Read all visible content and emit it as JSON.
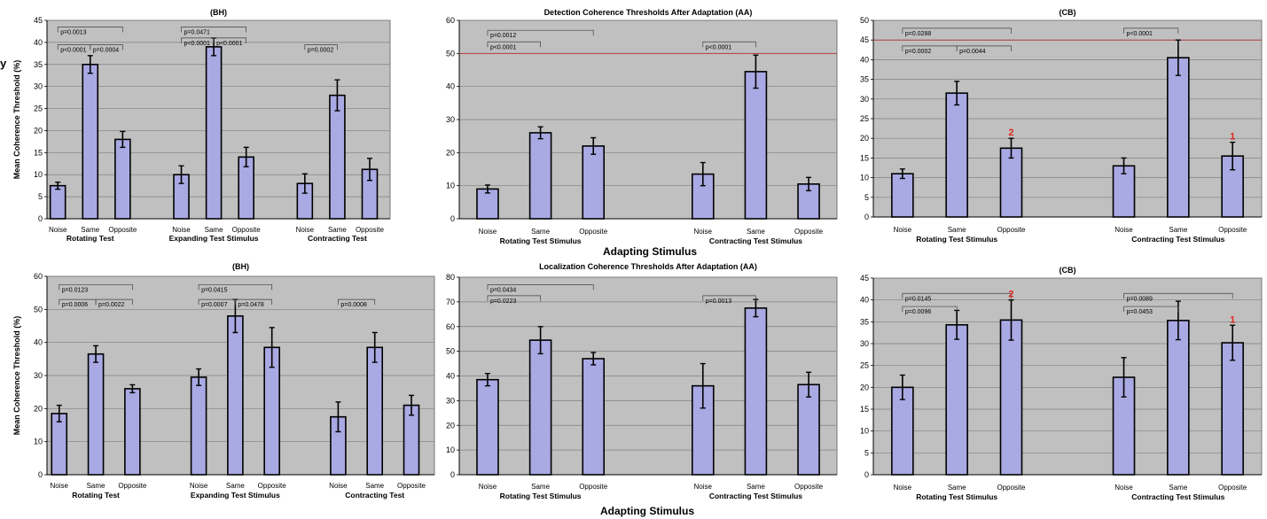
{
  "figure": {
    "adapting_caption": "Adapting Stimulus",
    "side_glyph": "y",
    "colors": {
      "bar": "#a9a9e3",
      "plot_bg": "#c0c0c0",
      "grid": "#808080",
      "ref_line": "#b04040",
      "marker": "#e0271f"
    }
  },
  "chart_data": [
    {
      "type": "bar",
      "title": "(BH)",
      "ylabel": "Mean Coherence Threshold (%)",
      "ylim": [
        0,
        45
      ],
      "ytick_step": 5,
      "categories": [
        "Noise",
        "Same",
        "Opposite",
        "Noise",
        "Same",
        "Opposite",
        "Noise",
        "Same",
        "Opposite"
      ],
      "groups": [
        "Rotating Test",
        "Expanding Test Stimulus",
        "Contracting Test"
      ],
      "values": [
        7.5,
        35,
        18,
        10,
        39,
        14,
        8,
        28,
        11.2
      ],
      "errors": [
        0.8,
        2,
        1.8,
        2,
        2,
        2.2,
        2.2,
        3.5,
        2.5
      ],
      "brackets": [
        {
          "from": 0,
          "to": 2,
          "y": 43.5,
          "label": "p=0.0013"
        },
        {
          "from": 0,
          "to": 1,
          "y": 39.5,
          "label": "p<0.0001"
        },
        {
          "from": 1,
          "to": 2,
          "y": 39.5,
          "label": "p=0.0004"
        },
        {
          "from": 3,
          "to": 5,
          "y": 43.5,
          "label": "p=0.0471"
        },
        {
          "from": 3,
          "to": 4,
          "y": 41,
          "label": "p<0.0001"
        },
        {
          "from": 4,
          "to": 5,
          "y": 41,
          "label": "p<0.0001"
        },
        {
          "from": 6,
          "to": 7,
          "y": 39.5,
          "label": "p=0.0002"
        }
      ],
      "markers": [],
      "ref_line": null
    },
    {
      "type": "bar",
      "title": "Detection Coherence Thresholds After Adaptation (AA)",
      "ylabel": "",
      "ylim": [
        0,
        60
      ],
      "ytick_step": 10,
      "categories": [
        "Noise",
        "Same",
        "Opposite",
        "Noise",
        "Same",
        "Opposite"
      ],
      "groups": [
        "Rotating Test Stimulus",
        "Contracting Test Stimulus"
      ],
      "values": [
        9,
        26,
        22,
        13.5,
        44.5,
        10.5
      ],
      "errors": [
        1.2,
        1.8,
        2.5,
        3.5,
        5,
        2
      ],
      "brackets": [
        {
          "from": 0,
          "to": 2,
          "y": 57,
          "label": "p=0.0012"
        },
        {
          "from": 0,
          "to": 1,
          "y": 53.5,
          "label": "p<0.0001"
        },
        {
          "from": 3,
          "to": 4,
          "y": 53.5,
          "label": "p<0.0001"
        }
      ],
      "markers": [],
      "ref_line": 50
    },
    {
      "type": "bar",
      "title": "(CB)",
      "ylabel": "",
      "ylim": [
        0,
        50
      ],
      "ytick_step": 5,
      "categories": [
        "Noise",
        "Same",
        "Opposite",
        "Noise",
        "Same",
        "Opposite"
      ],
      "groups": [
        "Rotating Test Stimulus",
        "Contracting Test Stimulus"
      ],
      "values": [
        11,
        31.5,
        17.5,
        13,
        40.5,
        15.5
      ],
      "errors": [
        1.2,
        3,
        2.5,
        2,
        4.5,
        3.5
      ],
      "brackets": [
        {
          "from": 0,
          "to": 2,
          "y": 48,
          "label": "p=0.0288"
        },
        {
          "from": 0,
          "to": 1,
          "y": 43.5,
          "label": "p=0.0002"
        },
        {
          "from": 1,
          "to": 2,
          "y": 43.5,
          "label": "p=0.0044"
        },
        {
          "from": 3,
          "to": 4,
          "y": 48,
          "label": "p<0.0001"
        }
      ],
      "markers": [
        {
          "index": 2,
          "label": "2"
        },
        {
          "index": 5,
          "label": "1"
        }
      ],
      "ref_line": 45
    },
    {
      "type": "bar",
      "title": "(BH)",
      "ylabel": "Mean Coherence Threshold (%)",
      "ylim": [
        0,
        60
      ],
      "ytick_step": 10,
      "categories": [
        "Noise",
        "Same",
        "Opposite",
        "Noise",
        "Same",
        "Opposite",
        "Noise",
        "Same",
        "Opposite"
      ],
      "groups": [
        "Rotating Test",
        "Expanding Test Stimulus",
        "Contracting Test"
      ],
      "values": [
        18.5,
        36.5,
        26,
        29.5,
        48,
        38.5,
        17.5,
        38.5,
        21
      ],
      "errors": [
        2.5,
        2.5,
        1.2,
        2.5,
        5,
        6,
        4.5,
        4.5,
        3
      ],
      "brackets": [
        {
          "from": 0,
          "to": 2,
          "y": 57.5,
          "label": "p=0.0123"
        },
        {
          "from": 0,
          "to": 1,
          "y": 53,
          "label": "p=0.0006"
        },
        {
          "from": 1,
          "to": 2,
          "y": 53,
          "label": "p=0.0022"
        },
        {
          "from": 3,
          "to": 5,
          "y": 57.5,
          "label": "p=0.0415"
        },
        {
          "from": 3,
          "to": 4,
          "y": 53,
          "label": "p=0.0007"
        },
        {
          "from": 4,
          "to": 5,
          "y": 53,
          "label": "p=0.0478"
        },
        {
          "from": 6,
          "to": 7,
          "y": 53,
          "label": "p=0.0008"
        }
      ],
      "markers": [],
      "ref_line": null
    },
    {
      "type": "bar",
      "title": "Localization Coherence Thresholds After Adaptation (AA)",
      "ylabel": "",
      "ylim": [
        0,
        80
      ],
      "ytick_step": 10,
      "categories": [
        "Noise",
        "Same",
        "Opposite",
        "Noise",
        "Same",
        "Opposite"
      ],
      "groups": [
        "Rotating Test Stimulus",
        "Contracting Test Stimulus"
      ],
      "values": [
        38.5,
        54.5,
        47,
        36,
        67.5,
        36.5
      ],
      "errors": [
        2.5,
        5.5,
        2.5,
        9,
        3.5,
        5
      ],
      "brackets": [
        {
          "from": 0,
          "to": 2,
          "y": 77,
          "label": "p=0.0434"
        },
        {
          "from": 0,
          "to": 1,
          "y": 72.5,
          "label": "p=0.0223"
        },
        {
          "from": 3,
          "to": 4,
          "y": 72.5,
          "label": "p=0.0013"
        }
      ],
      "markers": [],
      "ref_line": null
    },
    {
      "type": "bar",
      "title": "(CB)",
      "ylabel": "",
      "ylim": [
        0,
        45
      ],
      "ytick_step": 5,
      "categories": [
        "Noise",
        "Same",
        "Opposite",
        "Noise",
        "Same",
        "Opposite"
      ],
      "groups": [
        "Rotating Test Stimulus",
        "Contracting Test Stimulus"
      ],
      "values": [
        20,
        34.3,
        35.4,
        22.3,
        35.3,
        30.2
      ],
      "errors": [
        2.8,
        3.3,
        4.6,
        4.5,
        4.4,
        4
      ],
      "brackets": [
        {
          "from": 0,
          "to": 2,
          "y": 41.5,
          "label": "p=0.0145"
        },
        {
          "from": 0,
          "to": 1,
          "y": 38.5,
          "label": "p=0.0096"
        },
        {
          "from": 3,
          "to": 5,
          "y": 41.5,
          "label": "p=0.0089"
        },
        {
          "from": 3,
          "to": 4,
          "y": 38.5,
          "label": "p=0.0453"
        }
      ],
      "markers": [
        {
          "index": 2,
          "label": "2"
        },
        {
          "index": 5,
          "label": "1"
        }
      ],
      "ref_line": null
    }
  ]
}
